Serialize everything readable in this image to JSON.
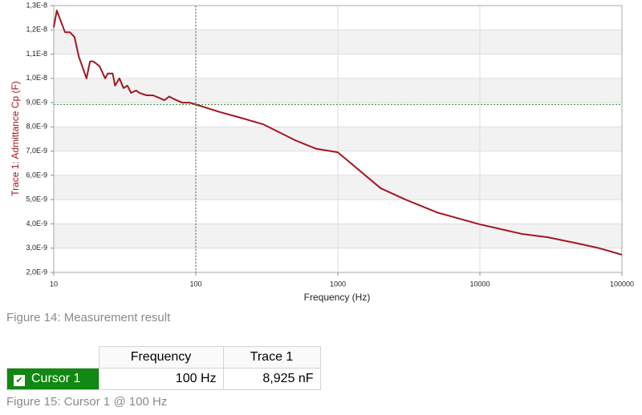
{
  "chart_data": {
    "type": "line",
    "x_label": "Frequency (Hz)",
    "y_label": "Trace 1: Admittance Cp (F)",
    "x_log": true,
    "xlim": [
      10,
      100000
    ],
    "xticks": [
      10,
      100,
      1000,
      10000,
      100000
    ],
    "ylim": [
      2e-09,
      1.3e-08
    ],
    "yticks": [
      {
        "value": 2e-09,
        "label": "2,0E-9"
      },
      {
        "value": 3e-09,
        "label": "3,0E-9"
      },
      {
        "value": 4e-09,
        "label": "4,0E-9"
      },
      {
        "value": 5e-09,
        "label": "5,0E-9"
      },
      {
        "value": 6e-09,
        "label": "6,0E-9"
      },
      {
        "value": 7e-09,
        "label": "7,0E-9"
      },
      {
        "value": 8e-09,
        "label": "8,0E-9"
      },
      {
        "value": 9e-09,
        "label": "9,0E-9"
      },
      {
        "value": 1e-08,
        "label": "1,0E-8"
      },
      {
        "value": 1.1e-08,
        "label": "1,1E-8"
      },
      {
        "value": 1.2e-08,
        "label": "1,2E-8"
      },
      {
        "value": 1.3e-08,
        "label": "1,3E-8"
      }
    ],
    "grid": true,
    "cursor": {
      "x": 100,
      "y": 8.925e-09,
      "color": "#2e7d32"
    },
    "x": [
      10,
      10.5,
      12,
      13,
      14,
      15,
      17,
      18,
      19,
      21,
      23,
      24,
      26,
      27,
      29,
      31,
      33,
      35,
      38,
      40,
      45,
      50,
      55,
      60,
      65,
      70,
      80,
      90,
      100,
      150,
      200,
      300,
      500,
      700,
      1000,
      2000,
      3000,
      5000,
      10000,
      20000,
      30000,
      50000,
      70000,
      100000
    ],
    "series": [
      {
        "name": "Trace 1",
        "color": "#a31621",
        "values": [
          1.21e-08,
          1.28e-08,
          1.19e-08,
          1.19e-08,
          1.17e-08,
          1.09e-08,
          1e-08,
          1.07e-08,
          1.07e-08,
          1.05e-08,
          1e-08,
          1.02e-08,
          1.02e-08,
          9.7e-09,
          1e-08,
          9.6e-09,
          9.7e-09,
          9.4e-09,
          9.5e-09,
          9.4e-09,
          9.3e-09,
          9.3e-09,
          9.2e-09,
          9.1e-09,
          9.25e-09,
          9.15e-09,
          9e-09,
          9e-09,
          8.925e-09,
          8.6e-09,
          8.4e-09,
          8.1e-09,
          7.45e-09,
          7.1e-09,
          6.95e-09,
          5.47e-09,
          5e-09,
          4.47e-09,
          3.98e-09,
          3.58e-09,
          3.45e-09,
          3.18e-09,
          2.99e-09,
          2.73e-09
        ]
      }
    ]
  },
  "captions": [
    "Figure 14: Measurement result",
    "Figure 15: Cursor 1 @ 100 Hz"
  ],
  "table": {
    "headers": [
      "Frequency",
      "Trace 1"
    ],
    "row": {
      "name": "Cursor 1",
      "frequency": "100 Hz",
      "trace": "8,925 nF"
    }
  }
}
